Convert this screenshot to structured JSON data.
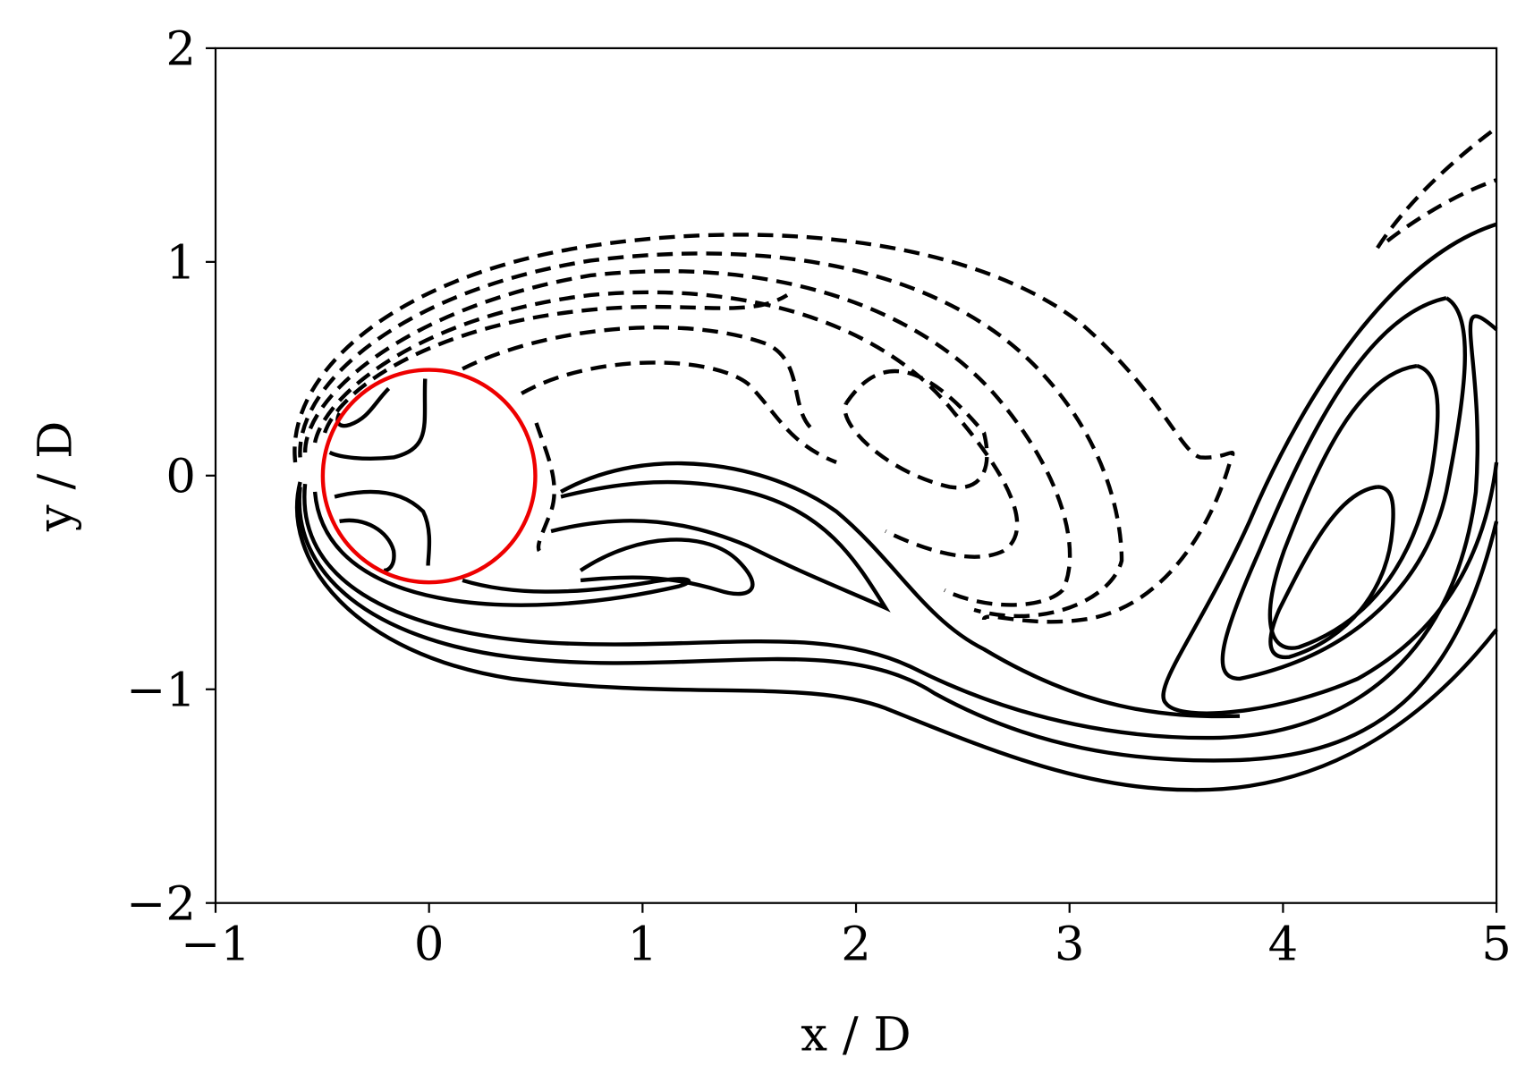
{
  "chart_data": {
    "type": "contour",
    "xlabel": "x / D",
    "ylabel": "y / D",
    "xlim": [
      -1,
      5
    ],
    "ylim": [
      -2,
      2
    ],
    "xticks": [
      {
        "value": -1,
        "label": "−1"
      },
      0,
      1,
      2,
      3,
      4,
      5
    ],
    "yticks": [
      {
        "value": -2,
        "label": "−2"
      },
      {
        "value": -1,
        "label": "−1"
      },
      0,
      1,
      2
    ]
  }
}
